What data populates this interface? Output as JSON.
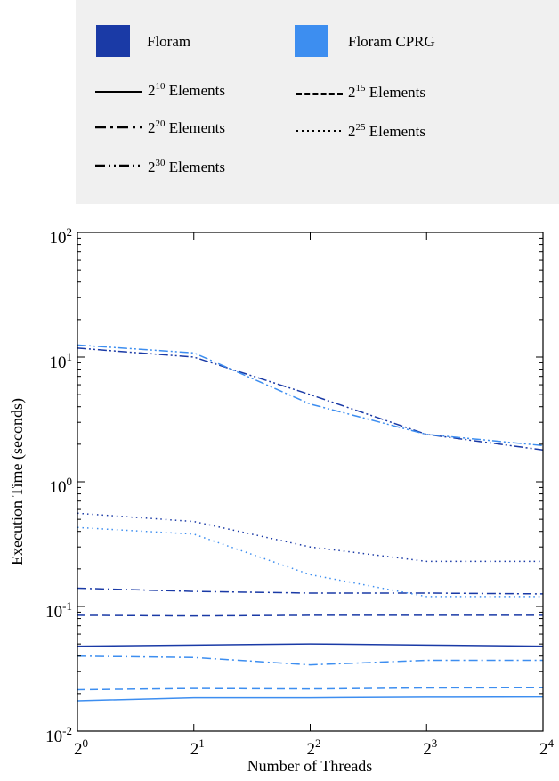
{
  "legend": {
    "color_items": [
      {
        "label": "Floram",
        "color": "#1a3aa6"
      },
      {
        "label": "Floram CPRG",
        "color": "#3d8ef0"
      }
    ],
    "style_items": [
      {
        "base": "2",
        "exp": "10",
        "suffix": "Elements",
        "dash": "solid"
      },
      {
        "base": "2",
        "exp": "15",
        "suffix": "Elements",
        "dash": "dashed"
      },
      {
        "base": "2",
        "exp": "20",
        "suffix": "Elements",
        "dash": "dashdot"
      },
      {
        "base": "2",
        "exp": "25",
        "suffix": "Elements",
        "dash": "dotted"
      },
      {
        "base": "2",
        "exp": "30",
        "suffix": "Elements",
        "dash": "dashdotdot"
      }
    ]
  },
  "chart_data": {
    "type": "line",
    "xlabel": "Number of Threads",
    "ylabel": "Execution Time (seconds)",
    "x": [
      1,
      2,
      4,
      8,
      16
    ],
    "x_tick_labels": [
      {
        "base": "2",
        "exp": "0"
      },
      {
        "base": "2",
        "exp": "1"
      },
      {
        "base": "2",
        "exp": "2"
      },
      {
        "base": "2",
        "exp": "3"
      },
      {
        "base": "2",
        "exp": "4"
      }
    ],
    "x_scale": "log2",
    "y_scale": "log10",
    "ylim": [
      0.01,
      100
    ],
    "y_tick_labels": [
      {
        "base": "10",
        "exp": "2",
        "value": 100
      },
      {
        "base": "10",
        "exp": "1",
        "value": 10
      },
      {
        "base": "10",
        "exp": "0",
        "value": 1
      },
      {
        "base": "10",
        "exp": "-1",
        "value": 0.1
      },
      {
        "base": "10",
        "exp": "-2",
        "value": 0.01
      }
    ],
    "grid": false,
    "series": [
      {
        "name": "Floram, 2^10 Elements",
        "color": "#1a3aa6",
        "dash": "solid",
        "values": [
          0.048,
          0.049,
          0.05,
          0.049,
          0.048
        ]
      },
      {
        "name": "Floram, 2^15 Elements",
        "color": "#1a3aa6",
        "dash": "dashed",
        "values": [
          0.085,
          0.084,
          0.085,
          0.085,
          0.085
        ]
      },
      {
        "name": "Floram, 2^20 Elements",
        "color": "#1a3aa6",
        "dash": "dashdot",
        "values": [
          0.14,
          0.132,
          0.128,
          0.128,
          0.126
        ]
      },
      {
        "name": "Floram, 2^25 Elements",
        "color": "#1a3aa6",
        "dash": "dotted",
        "values": [
          0.56,
          0.48,
          0.3,
          0.23,
          0.23
        ]
      },
      {
        "name": "Floram, 2^30 Elements",
        "color": "#1a3aa6",
        "dash": "dashdotdot",
        "values": [
          11.8,
          10.0,
          5.0,
          2.4,
          1.8
        ]
      },
      {
        "name": "Floram CPRG, 2^10 Elements",
        "color": "#3d8ef0",
        "dash": "solid",
        "values": [
          0.0175,
          0.0185,
          0.0185,
          0.0187,
          0.0188
        ]
      },
      {
        "name": "Floram CPRG, 2^15 Elements",
        "color": "#3d8ef0",
        "dash": "dashed",
        "values": [
          0.0215,
          0.022,
          0.0218,
          0.0222,
          0.0223
        ]
      },
      {
        "name": "Floram CPRG, 2^20 Elements",
        "color": "#3d8ef0",
        "dash": "dashdot",
        "values": [
          0.04,
          0.039,
          0.034,
          0.037,
          0.037
        ]
      },
      {
        "name": "Floram CPRG, 2^25 Elements",
        "color": "#3d8ef0",
        "dash": "dotted",
        "values": [
          0.43,
          0.38,
          0.18,
          0.12,
          0.12
        ]
      },
      {
        "name": "Floram CPRG, 2^30 Elements",
        "color": "#3d8ef0",
        "dash": "dashdotdot",
        "values": [
          12.5,
          10.8,
          4.2,
          2.4,
          1.95
        ]
      }
    ]
  }
}
